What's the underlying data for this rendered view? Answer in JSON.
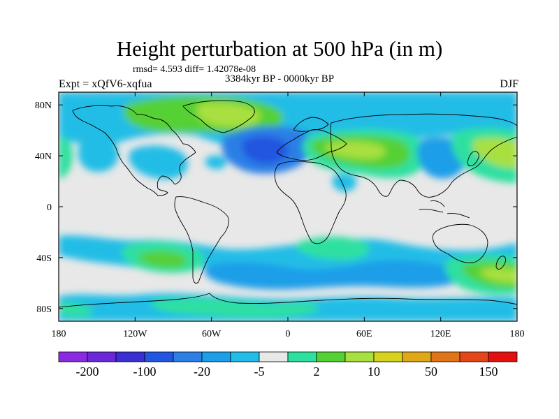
{
  "title": "Height perturbation at 500 hPa (in m)",
  "stats_line": "rmsd= 4.593  diff= 1.42078e-08",
  "period": "3384kyr BP - 0000kyr BP",
  "experiment": "Expt = xQfV6-xqfua",
  "season": "DJF",
  "map": {
    "lat_ticks": [
      {
        "label": "80N",
        "lat": 80
      },
      {
        "label": "40N",
        "lat": 40
      },
      {
        "label": "0",
        "lat": 0
      },
      {
        "label": "40S",
        "lat": -40
      },
      {
        "label": "80S",
        "lat": -80
      }
    ],
    "lon_ticks": [
      {
        "label": "180",
        "lon": -180
      },
      {
        "label": "120W",
        "lon": -120
      },
      {
        "label": "60W",
        "lon": -60
      },
      {
        "label": "0",
        "lon": 0
      },
      {
        "label": "60E",
        "lon": 60
      },
      {
        "label": "120E",
        "lon": 120
      },
      {
        "label": "180",
        "lon": 180
      }
    ],
    "lat_range": [
      -90,
      90
    ],
    "lon_range": [
      -180,
      180
    ]
  },
  "colorbar": {
    "colors": [
      "#8a2be2",
      "#6a28d8",
      "#3a2fd0",
      "#2255e0",
      "#2b7fe6",
      "#1c9ee8",
      "#22bde6",
      "#e8e8e8",
      "#2ee0a0",
      "#55d034",
      "#a8e040",
      "#d6d21e",
      "#e0a818",
      "#e27418",
      "#e4461a",
      "#e41010"
    ],
    "labels": [
      {
        "text": "-200",
        "boundary": 1
      },
      {
        "text": "-100",
        "boundary": 3
      },
      {
        "text": "-20",
        "boundary": 5
      },
      {
        "text": "-5",
        "boundary": 7
      },
      {
        "text": "2",
        "boundary": 9
      },
      {
        "text": "10",
        "boundary": 11
      },
      {
        "text": "50",
        "boundary": 13
      },
      {
        "text": "150",
        "boundary": 15
      }
    ]
  }
}
